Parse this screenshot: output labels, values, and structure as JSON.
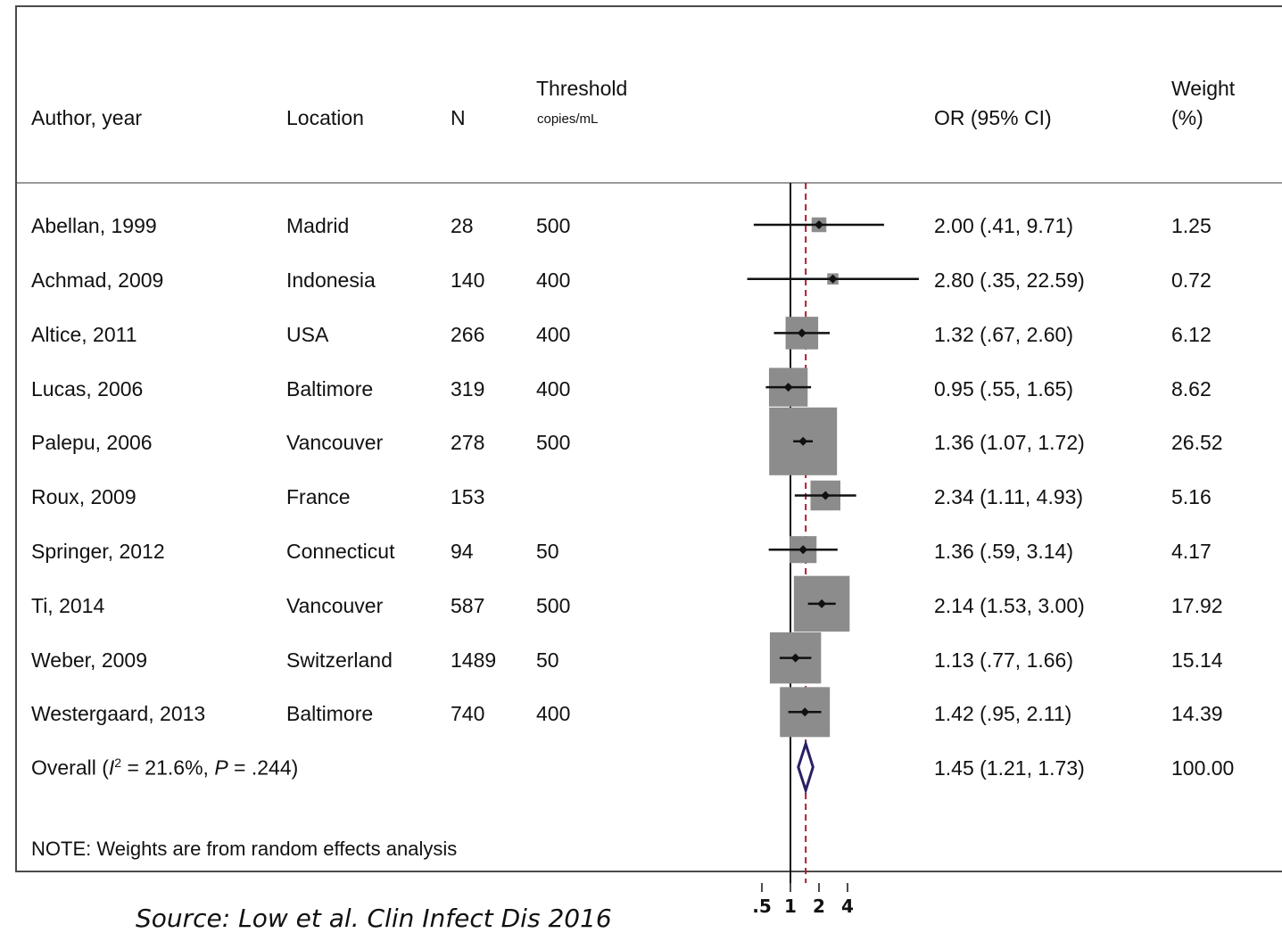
{
  "header": {
    "author": "Author, year",
    "location": "Location",
    "n": "N",
    "threshold": "Threshold",
    "threshold_unit": "copies/mL",
    "or": "OR (95% CI)",
    "weight_line1": "Weight",
    "weight_line2": "(%)"
  },
  "rows": [
    {
      "author": "Abellan, 1999",
      "location": "Madrid",
      "n": "28",
      "threshold": "500",
      "or_text": "2.00 (.41, 9.71)",
      "weight": "1.25"
    },
    {
      "author": "Achmad, 2009",
      "location": "Indonesia",
      "n": "140",
      "threshold": "400",
      "or_text": "2.80 (.35, 22.59)",
      "weight": "0.72"
    },
    {
      "author": "Altice, 2011",
      "location": "USA",
      "n": "266",
      "threshold": "400",
      "or_text": "1.32 (.67, 2.60)",
      "weight": "6.12"
    },
    {
      "author": "Lucas, 2006",
      "location": "Baltimore",
      "n": "319",
      "threshold": "400",
      "or_text": "0.95 (.55, 1.65)",
      "weight": "8.62"
    },
    {
      "author": "Palepu, 2006",
      "location": "Vancouver",
      "n": "278",
      "threshold": "500",
      "or_text": "1.36 (1.07, 1.72)",
      "weight": "26.52"
    },
    {
      "author": "Roux, 2009",
      "location": "France",
      "n": "153",
      "threshold": "",
      "or_text": "2.34 (1.11, 4.93)",
      "weight": "5.16"
    },
    {
      "author": "Springer, 2012",
      "location": "Connecticut",
      "n": "94",
      "threshold": "50",
      "or_text": "1.36 (.59, 3.14)",
      "weight": "4.17"
    },
    {
      "author": "Ti, 2014",
      "location": "Vancouver",
      "n": "587",
      "threshold": "500",
      "or_text": "2.14 (1.53, 3.00)",
      "weight": "17.92"
    },
    {
      "author": "Weber, 2009",
      "location": "Switzerland",
      "n": "1489",
      "threshold": "50",
      "or_text": "1.13 (.77, 1.66)",
      "weight": "15.14"
    },
    {
      "author": "Westergaard, 2013",
      "location": "Baltimore",
      "n": "740",
      "threshold": "400",
      "or_text": "1.42 (.95, 2.11)",
      "weight": "14.39"
    }
  ],
  "overall": {
    "label_prefix": "Overall  (",
    "i2_symbol": "I",
    "i2_sup": "2",
    "label_mid": " = 21.6%, ",
    "p_symbol": "P",
    "label_suffix": " = .244)",
    "or_text": "1.45 (1.21, 1.73)",
    "weight": "100.00"
  },
  "note": "NOTE: Weights are from random effects analysis",
  "citation": "Source: Low et al. Clin Infect Dis 2016",
  "colors": {
    "box": "#8c8c8c",
    "line": "#111111",
    "null_line": "#111111",
    "pooled_line": "#b01c2e",
    "diamond": "#2a1f66"
  },
  "chart_data": {
    "type": "forest",
    "scale": "log",
    "x_ticks": [
      0.5,
      1,
      2,
      4
    ],
    "x_tick_labels": [
      ".5",
      "1",
      "2",
      "4"
    ],
    "null_value": 1,
    "studies": [
      {
        "name": "Abellan, 1999",
        "or": 2.0,
        "lo": 0.41,
        "hi": 9.71,
        "weight": 1.25
      },
      {
        "name": "Achmad, 2009",
        "or": 2.8,
        "lo": 0.35,
        "hi": 22.59,
        "weight": 0.72
      },
      {
        "name": "Altice, 2011",
        "or": 1.32,
        "lo": 0.67,
        "hi": 2.6,
        "weight": 6.12
      },
      {
        "name": "Lucas, 2006",
        "or": 0.95,
        "lo": 0.55,
        "hi": 1.65,
        "weight": 8.62
      },
      {
        "name": "Palepu, 2006",
        "or": 1.36,
        "lo": 1.07,
        "hi": 1.72,
        "weight": 26.52
      },
      {
        "name": "Roux, 2009",
        "or": 2.34,
        "lo": 1.11,
        "hi": 4.93,
        "weight": 5.16
      },
      {
        "name": "Springer, 2012",
        "or": 1.36,
        "lo": 0.59,
        "hi": 3.14,
        "weight": 4.17
      },
      {
        "name": "Ti, 2014",
        "or": 2.14,
        "lo": 1.53,
        "hi": 3.0,
        "weight": 17.92
      },
      {
        "name": "Weber, 2009",
        "or": 1.13,
        "lo": 0.77,
        "hi": 1.66,
        "weight": 15.14
      },
      {
        "name": "Westergaard, 2013",
        "or": 1.42,
        "lo": 0.95,
        "hi": 2.11,
        "weight": 14.39
      }
    ],
    "overall": {
      "or": 1.45,
      "lo": 1.21,
      "hi": 1.73,
      "weight": 100.0
    }
  }
}
